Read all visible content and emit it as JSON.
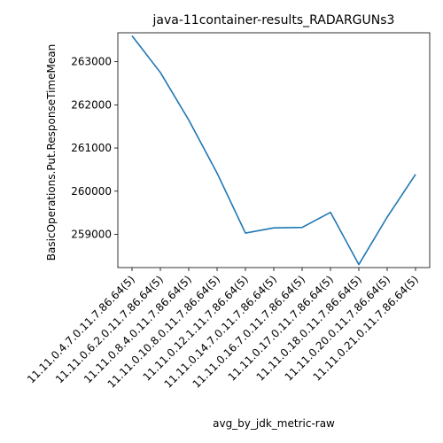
{
  "chart_data": {
    "type": "line",
    "title": "java-11container-results_RADARGUNs3",
    "xlabel": "avg_by_jdk_metric-raw",
    "ylabel": "BasicOperations.Put.ResponseTimeMean",
    "categories": [
      "11.11.0.4.7.0.11.7.86.64(5)",
      "11.11.0.6.2.0.11.7.86.64(5)",
      "11.11.0.8.4.0.11.7.86.64(5)",
      "11.11.0.10.8.0.11.7.86.64(5)",
      "11.11.0.12.1.11.7.86.64(5)",
      "11.11.0.14.7.0.11.7.86.64(5)",
      "11.11.0.16.7.0.11.7.86.64(5)",
      "11.11.0.17.0.11.7.86.64(5)",
      "11.11.0.18.0.11.7.86.64(5)",
      "11.11.0.20.0.11.7.86.64(5)",
      "11.11.0.21.0.11.7.86.64(5)"
    ],
    "series": [
      {
        "values": [
          263600,
          262750,
          261650,
          260420,
          259030,
          259150,
          259160,
          259510,
          258300,
          259400,
          260390
        ]
      }
    ],
    "yticks": [
      259000,
      260000,
      261000,
      262000,
      263000
    ],
    "ytick_labels": [
      "259000",
      "260000",
      "261000",
      "262000",
      "263000"
    ],
    "ylim": [
      258230,
      263670
    ],
    "grid": false,
    "line_color": "#1f77b4"
  }
}
